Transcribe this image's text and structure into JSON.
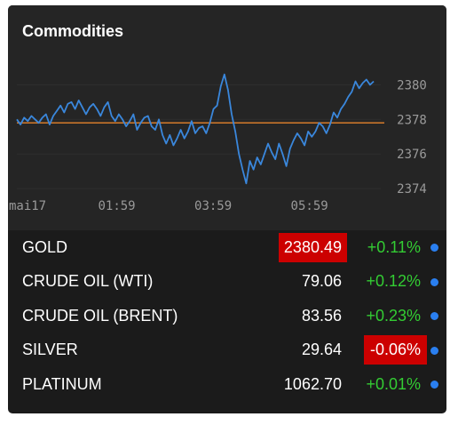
{
  "widget": {
    "title": "Commodities"
  },
  "chart_data": {
    "type": "line",
    "title": "",
    "xlabel": "",
    "ylabel": "",
    "x_tick_labels": [
      "mai17",
      "01:59",
      "03:59",
      "05:59"
    ],
    "y_tick_labels": [
      "2380",
      "2378",
      "2376",
      "2374"
    ],
    "ylim": [
      2373.7,
      2381.2
    ],
    "reference_value": 2377.8,
    "series": [
      {
        "values": [
          2378.0,
          2377.7,
          2378.1,
          2377.9,
          2378.2,
          2378.0,
          2377.8,
          2378.1,
          2378.3,
          2377.7,
          2378.2,
          2378.5,
          2378.8,
          2378.4,
          2378.9,
          2379.0,
          2378.6,
          2379.1,
          2378.7,
          2378.3,
          2378.7,
          2378.9,
          2378.6,
          2378.2,
          2378.7,
          2379.0,
          2378.2,
          2377.9,
          2378.3,
          2378.0,
          2377.6,
          2377.9,
          2378.3,
          2377.4,
          2377.8,
          2378.1,
          2378.2,
          2377.6,
          2377.4,
          2378.0,
          2377.1,
          2376.6,
          2377.1,
          2376.5,
          2376.9,
          2377.4,
          2376.9,
          2377.3,
          2377.9,
          2377.2,
          2377.5,
          2377.6,
          2377.2,
          2377.8,
          2378.6,
          2378.8,
          2379.9,
          2380.6,
          2379.7,
          2378.3,
          2377.3,
          2376.0,
          2375.1,
          2374.3,
          2375.6,
          2375.1,
          2375.8,
          2375.4,
          2376.0,
          2376.6,
          2376.1,
          2375.7,
          2376.6,
          2376.0,
          2375.3,
          2376.3,
          2376.8,
          2377.2,
          2376.9,
          2376.5,
          2377.3,
          2377.0,
          2377.3,
          2377.8,
          2377.6,
          2377.2,
          2377.7,
          2378.4,
          2378.1,
          2378.6,
          2378.9,
          2379.3,
          2379.6,
          2380.2,
          2379.8,
          2380.1,
          2380.3,
          2380.0,
          2380.2
        ]
      }
    ],
    "colors": {
      "line": "#3a87dc",
      "reference": "#c8742a",
      "grid": "#2f2f2f"
    }
  },
  "commodities": [
    {
      "name": "GOLD",
      "price": "2380.49",
      "change": "+0.11%",
      "price_highlighted": true,
      "change_negative": false
    },
    {
      "name": "CRUDE OIL (WTI)",
      "price": "79.06",
      "change": "+0.12%",
      "price_highlighted": false,
      "change_negative": false
    },
    {
      "name": "CRUDE OIL (BRENT)",
      "price": "83.56",
      "change": "+0.23%",
      "price_highlighted": false,
      "change_negative": false
    },
    {
      "name": "SILVER",
      "price": "29.64",
      "change": "-0.06%",
      "price_highlighted": false,
      "change_negative": true
    },
    {
      "name": "PLATINUM",
      "price": "1062.70",
      "change": "+0.01%",
      "price_highlighted": false,
      "change_negative": false
    }
  ],
  "colors": {
    "positive": "#33cc33",
    "negative_bg": "#cc0000",
    "dot": "#2a7ff0"
  }
}
